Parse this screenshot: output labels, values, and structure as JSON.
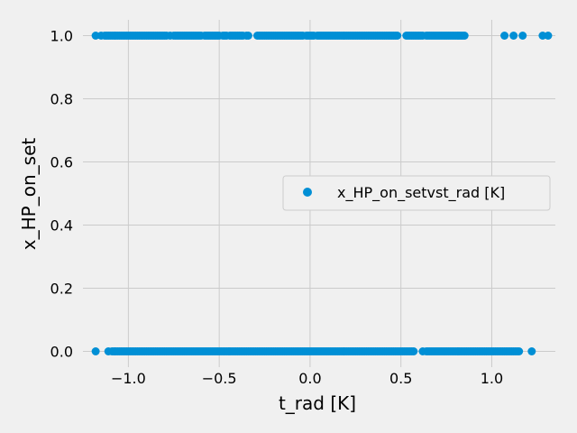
{
  "chart_data": {
    "type": "scatter",
    "xlabel": "t_rad [K]",
    "ylabel": "x_HP_on_set",
    "xlim": [
      -1.25,
      1.35
    ],
    "ylim": [
      -0.05,
      1.05
    ],
    "xticks": [
      -1.0,
      -0.5,
      0.0,
      0.5,
      1.0
    ],
    "xtick_labels": [
      "−1.0",
      "−0.5",
      "0.0",
      "0.5",
      "1.0"
    ],
    "yticks": [
      0.0,
      0.2,
      0.4,
      0.6,
      0.8,
      1.0
    ],
    "ytick_labels": [
      "0.0",
      "0.2",
      "0.4",
      "0.6",
      "0.8",
      "1.0"
    ],
    "grid": true,
    "legend_position": "center-right",
    "colors": {
      "series": "#008fd5",
      "background": "#f0f0f0",
      "grid": "#cbcbcb"
    },
    "series": [
      {
        "name": "x_HP_on_setvst_rad [K]",
        "points_y1": [
          -1.18,
          -1.15,
          -1.13,
          -1.12,
          -1.11,
          -1.1,
          -1.09,
          -1.08,
          -1.07,
          -1.06,
          -1.05,
          -1.04,
          -1.03,
          -1.02,
          -1.01,
          -1.0,
          -0.99,
          -0.98,
          -0.97,
          -0.96,
          -0.95,
          -0.94,
          -0.93,
          -0.92,
          -0.91,
          -0.9,
          -0.89,
          -0.88,
          -0.87,
          -0.86,
          -0.85,
          -0.84,
          -0.83,
          -0.82,
          -0.81,
          -0.8,
          -0.79,
          -0.77,
          -0.75,
          -0.74,
          -0.73,
          -0.72,
          -0.71,
          -0.7,
          -0.69,
          -0.68,
          -0.67,
          -0.66,
          -0.65,
          -0.64,
          -0.63,
          -0.62,
          -0.61,
          -0.6,
          -0.58,
          -0.57,
          -0.56,
          -0.55,
          -0.54,
          -0.53,
          -0.52,
          -0.51,
          -0.5,
          -0.48,
          -0.47,
          -0.46,
          -0.44,
          -0.43,
          -0.42,
          -0.41,
          -0.4,
          -0.39,
          -0.38,
          -0.37,
          -0.35,
          -0.34,
          -0.29,
          -0.28,
          -0.27,
          -0.26,
          -0.25,
          -0.24,
          -0.23,
          -0.22,
          -0.21,
          -0.2,
          -0.19,
          -0.18,
          -0.17,
          -0.16,
          -0.15,
          -0.14,
          -0.13,
          -0.12,
          -0.11,
          -0.1,
          -0.09,
          -0.08,
          -0.07,
          -0.06,
          -0.05,
          -0.04,
          -0.02,
          -0.01,
          0.0,
          0.01,
          0.02,
          0.04,
          0.05,
          0.06,
          0.07,
          0.08,
          0.09,
          0.1,
          0.11,
          0.12,
          0.13,
          0.14,
          0.15,
          0.16,
          0.17,
          0.18,
          0.19,
          0.2,
          0.21,
          0.22,
          0.23,
          0.24,
          0.25,
          0.26,
          0.27,
          0.28,
          0.29,
          0.3,
          0.31,
          0.32,
          0.33,
          0.34,
          0.35,
          0.36,
          0.37,
          0.38,
          0.39,
          0.4,
          0.41,
          0.42,
          0.43,
          0.44,
          0.45,
          0.46,
          0.47,
          0.48,
          0.53,
          0.54,
          0.55,
          0.56,
          0.57,
          0.58,
          0.59,
          0.6,
          0.61,
          0.62,
          0.64,
          0.65,
          0.66,
          0.67,
          0.68,
          0.69,
          0.7,
          0.71,
          0.72,
          0.73,
          0.74,
          0.75,
          0.76,
          0.77,
          0.78,
          0.79,
          0.8,
          0.81,
          0.82,
          0.83,
          0.84,
          0.85,
          1.07,
          1.12,
          1.17,
          1.28,
          1.31
        ],
        "points_y0": [
          -1.18,
          -1.11,
          -1.09,
          -1.08,
          -1.07,
          -1.06,
          -1.05,
          -1.04,
          -1.03,
          -1.02,
          -1.01,
          -1.0,
          -0.99,
          -0.98,
          -0.97,
          -0.96,
          -0.95,
          -0.94,
          -0.93,
          -0.92,
          -0.91,
          -0.9,
          -0.89,
          -0.88,
          -0.87,
          -0.86,
          -0.85,
          -0.84,
          -0.83,
          -0.82,
          -0.81,
          -0.8,
          -0.79,
          -0.78,
          -0.77,
          -0.76,
          -0.75,
          -0.74,
          -0.73,
          -0.72,
          -0.71,
          -0.7,
          -0.69,
          -0.68,
          -0.67,
          -0.66,
          -0.65,
          -0.64,
          -0.63,
          -0.62,
          -0.61,
          -0.6,
          -0.59,
          -0.58,
          -0.57,
          -0.56,
          -0.55,
          -0.54,
          -0.53,
          -0.52,
          -0.51,
          -0.5,
          -0.49,
          -0.48,
          -0.47,
          -0.46,
          -0.45,
          -0.44,
          -0.43,
          -0.42,
          -0.41,
          -0.4,
          -0.39,
          -0.38,
          -0.37,
          -0.36,
          -0.35,
          -0.34,
          -0.33,
          -0.32,
          -0.31,
          -0.3,
          -0.29,
          -0.28,
          -0.27,
          -0.26,
          -0.25,
          -0.24,
          -0.23,
          -0.22,
          -0.21,
          -0.2,
          -0.19,
          -0.18,
          -0.17,
          -0.16,
          -0.15,
          -0.14,
          -0.13,
          -0.12,
          -0.11,
          -0.1,
          -0.09,
          -0.08,
          -0.07,
          -0.06,
          -0.05,
          -0.04,
          -0.03,
          -0.02,
          -0.01,
          0.0,
          0.01,
          0.02,
          0.03,
          0.04,
          0.05,
          0.06,
          0.07,
          0.08,
          0.09,
          0.1,
          0.11,
          0.12,
          0.13,
          0.14,
          0.15,
          0.16,
          0.17,
          0.18,
          0.19,
          0.2,
          0.21,
          0.22,
          0.23,
          0.24,
          0.25,
          0.26,
          0.27,
          0.28,
          0.29,
          0.3,
          0.31,
          0.32,
          0.33,
          0.34,
          0.35,
          0.36,
          0.37,
          0.38,
          0.39,
          0.4,
          0.41,
          0.42,
          0.43,
          0.44,
          0.45,
          0.46,
          0.47,
          0.48,
          0.49,
          0.5,
          0.51,
          0.52,
          0.53,
          0.54,
          0.55,
          0.56,
          0.57,
          0.62,
          0.64,
          0.65,
          0.66,
          0.67,
          0.68,
          0.69,
          0.7,
          0.71,
          0.72,
          0.73,
          0.74,
          0.75,
          0.76,
          0.77,
          0.78,
          0.79,
          0.8,
          0.81,
          0.82,
          0.83,
          0.84,
          0.85,
          0.86,
          0.87,
          0.88,
          0.89,
          0.9,
          0.91,
          0.92,
          0.93,
          0.94,
          0.95,
          0.96,
          0.97,
          0.98,
          0.99,
          1.0,
          1.01,
          1.02,
          1.03,
          1.04,
          1.05,
          1.06,
          1.07,
          1.08,
          1.09,
          1.1,
          1.11,
          1.12,
          1.13,
          1.14,
          1.15,
          1.22
        ]
      }
    ]
  }
}
